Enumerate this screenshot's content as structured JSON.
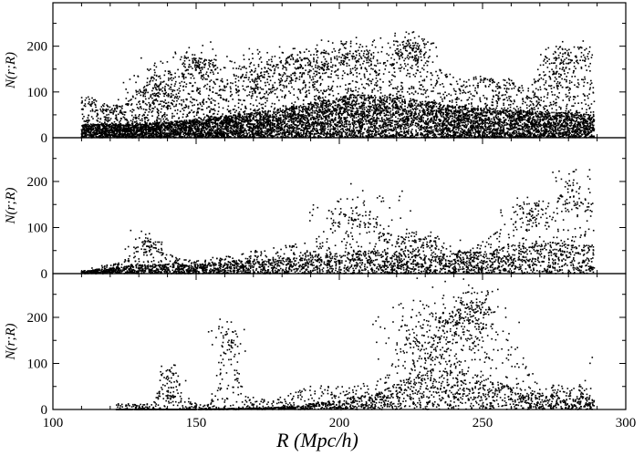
{
  "chart_data": {
    "type": "scatter",
    "layout": "three vertically stacked panels sharing the x axis",
    "xlabel": "R (Mpc/h)",
    "xlim": [
      100,
      300
    ],
    "x_ticks": [
      100,
      150,
      200,
      250,
      300
    ],
    "grid": false,
    "legend": "none",
    "marker_color": "#000000",
    "panels": [
      {
        "ylabel": "N(r;R)",
        "ylim": [
          0,
          295
        ],
        "y_ticks": [
          0,
          100,
          200
        ],
        "x_range": [
          110,
          289
        ],
        "envelope": [
          [
            110,
            95
          ],
          [
            115,
            85
          ],
          [
            120,
            70
          ],
          [
            125,
            75
          ],
          [
            130,
            110
          ],
          [
            135,
            140
          ],
          [
            140,
            125
          ],
          [
            145,
            150
          ],
          [
            150,
            178
          ],
          [
            155,
            170
          ],
          [
            160,
            120
          ],
          [
            165,
            135
          ],
          [
            170,
            145
          ],
          [
            175,
            165
          ],
          [
            180,
            150
          ],
          [
            185,
            170
          ],
          [
            190,
            180
          ],
          [
            195,
            160
          ],
          [
            200,
            185
          ],
          [
            205,
            195
          ],
          [
            210,
            190
          ],
          [
            215,
            160
          ],
          [
            220,
            200
          ],
          [
            225,
            218
          ],
          [
            230,
            190
          ],
          [
            235,
            150
          ],
          [
            240,
            135
          ],
          [
            245,
            130
          ],
          [
            250,
            135
          ],
          [
            255,
            125
          ],
          [
            260,
            130
          ],
          [
            265,
            120
          ],
          [
            270,
            140
          ],
          [
            275,
            170
          ],
          [
            280,
            190
          ],
          [
            285,
            170
          ],
          [
            289,
            140
          ]
        ],
        "dense_level": [
          [
            110,
            30
          ],
          [
            130,
            30
          ],
          [
            150,
            40
          ],
          [
            170,
            55
          ],
          [
            190,
            75
          ],
          [
            205,
            95
          ],
          [
            220,
            90
          ],
          [
            240,
            70
          ],
          [
            260,
            60
          ],
          [
            280,
            55
          ],
          [
            289,
            50
          ]
        ],
        "features": [
          {
            "x": 137,
            "y": 100,
            "width": 5,
            "height": 35,
            "count": 140
          },
          {
            "x": 151,
            "y": 160,
            "width": 5,
            "height": 18,
            "count": 110
          },
          {
            "x": 173,
            "y": 140,
            "width": 7,
            "height": 25,
            "count": 120
          },
          {
            "x": 187,
            "y": 160,
            "width": 6,
            "height": 18,
            "count": 120
          },
          {
            "x": 204,
            "y": 175,
            "width": 8,
            "height": 20,
            "count": 140
          },
          {
            "x": 225,
            "y": 195,
            "width": 4,
            "height": 20,
            "count": 110
          },
          {
            "x": 279,
            "y": 170,
            "width": 5,
            "height": 20,
            "count": 110
          }
        ],
        "points": 9500
      },
      {
        "ylabel": "N(r;R)",
        "ylim": [
          0,
          295
        ],
        "y_ticks": [
          0,
          100,
          200
        ],
        "x_range": [
          110,
          289
        ],
        "envelope": [
          [
            110,
            5
          ],
          [
            115,
            15
          ],
          [
            120,
            20
          ],
          [
            125,
            30
          ],
          [
            130,
            55
          ],
          [
            133,
            72
          ],
          [
            136,
            75
          ],
          [
            140,
            45
          ],
          [
            145,
            30
          ],
          [
            150,
            30
          ],
          [
            155,
            35
          ],
          [
            160,
            40
          ],
          [
            165,
            45
          ],
          [
            170,
            50
          ],
          [
            175,
            55
          ],
          [
            180,
            60
          ],
          [
            185,
            65
          ],
          [
            190,
            70
          ],
          [
            195,
            90
          ],
          [
            200,
            130
          ],
          [
            205,
            145
          ],
          [
            210,
            140
          ],
          [
            215,
            100
          ],
          [
            220,
            80
          ],
          [
            225,
            90
          ],
          [
            230,
            85
          ],
          [
            235,
            75
          ],
          [
            240,
            60
          ],
          [
            245,
            50
          ],
          [
            250,
            70
          ],
          [
            255,
            95
          ],
          [
            260,
            120
          ],
          [
            265,
            145
          ],
          [
            270,
            140
          ],
          [
            275,
            150
          ],
          [
            280,
            190
          ],
          [
            285,
            175
          ],
          [
            289,
            150
          ]
        ],
        "dense_level": [
          [
            110,
            5
          ],
          [
            130,
            20
          ],
          [
            150,
            20
          ],
          [
            170,
            30
          ],
          [
            190,
            40
          ],
          [
            210,
            50
          ],
          [
            230,
            40
          ],
          [
            250,
            50
          ],
          [
            270,
            70
          ],
          [
            289,
            60
          ]
        ],
        "features": [
          {
            "x": 133,
            "y": 65,
            "width": 3,
            "height": 10,
            "count": 50
          },
          {
            "x": 205,
            "y": 120,
            "width": 7,
            "height": 25,
            "count": 90
          },
          {
            "x": 227,
            "y": 70,
            "width": 6,
            "height": 15,
            "count": 70
          },
          {
            "x": 266,
            "y": 135,
            "width": 4,
            "height": 15,
            "count": 70
          },
          {
            "x": 282,
            "y": 170,
            "width": 4,
            "height": 25,
            "count": 60
          }
        ],
        "points": 3200
      },
      {
        "ylabel": "N(r;R)",
        "ylim": [
          0,
          295
        ],
        "y_ticks": [
          0,
          100,
          200
        ],
        "x_range": [
          122,
          289
        ],
        "envelope": [
          [
            122,
            15
          ],
          [
            130,
            10
          ],
          [
            135,
            20
          ],
          [
            138,
            60
          ],
          [
            141,
            85
          ],
          [
            144,
            60
          ],
          [
            148,
            20
          ],
          [
            155,
            15
          ],
          [
            158,
            120
          ],
          [
            161,
            170
          ],
          [
            164,
            140
          ],
          [
            167,
            30
          ],
          [
            175,
            20
          ],
          [
            185,
            40
          ],
          [
            190,
            55
          ],
          [
            200,
            50
          ],
          [
            210,
            60
          ],
          [
            215,
            70
          ],
          [
            220,
            100
          ],
          [
            225,
            200
          ],
          [
            230,
            210
          ],
          [
            235,
            200
          ],
          [
            240,
            230
          ],
          [
            245,
            245
          ],
          [
            250,
            220
          ],
          [
            255,
            200
          ],
          [
            260,
            160
          ],
          [
            265,
            110
          ],
          [
            270,
            60
          ],
          [
            275,
            55
          ],
          [
            280,
            55
          ],
          [
            285,
            60
          ],
          [
            289,
            135
          ]
        ],
        "dense_level": [
          [
            122,
            0
          ],
          [
            150,
            0
          ],
          [
            180,
            5
          ],
          [
            200,
            20
          ],
          [
            215,
            40
          ],
          [
            230,
            90
          ],
          [
            245,
            80
          ],
          [
            260,
            50
          ],
          [
            275,
            30
          ],
          [
            289,
            30
          ]
        ],
        "features": [
          {
            "x": 141,
            "y": 75,
            "width": 2,
            "height": 10,
            "count": 30
          },
          {
            "x": 141,
            "y": 25,
            "width": 2,
            "height": 12,
            "count": 25
          },
          {
            "x": 161,
            "y": 150,
            "width": 3,
            "height": 22,
            "count": 50
          },
          {
            "x": 233,
            "y": 140,
            "width": 8,
            "height": 50,
            "count": 260
          },
          {
            "x": 246,
            "y": 200,
            "width": 5,
            "height": 35,
            "count": 200
          }
        ],
        "points": 2200
      }
    ]
  }
}
